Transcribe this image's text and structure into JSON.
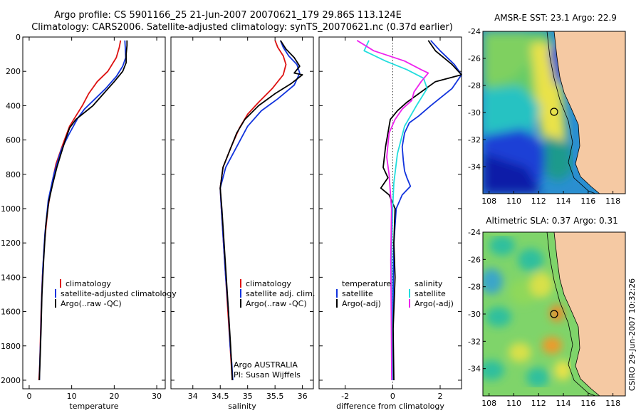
{
  "header": {
    "title_line1": "Argo profile: CS 5901166_25 21-Jun-2007 20070621_179 29.86S 113.124E",
    "title_line2": "Climatology: CARS2006. Satellite-adjusted climatology: synTS_20070621.nc (0.37d earlier)"
  },
  "colors": {
    "climatology": "#dd1111",
    "satellite": "#1133dd",
    "argo": "#000000",
    "sal_satellite": "#22dddd",
    "sal_argo": "#ee22ee",
    "land": "#f5c9a3"
  },
  "side_stamp": "CSIRO 29-Jun-2007 10:32:26",
  "chart_data": [
    {
      "type": "line",
      "xlabel": "temperature",
      "ylabel": "",
      "xlim": [
        -1.5,
        32
      ],
      "ylim": [
        2050,
        0
      ],
      "xticks": [
        0,
        10,
        20,
        30
      ],
      "yticks": [
        0,
        200,
        400,
        600,
        800,
        1000,
        1200,
        1400,
        1600,
        1800,
        2000
      ],
      "legend": [
        "climatology",
        "satellite-adjusted climatology",
        "Argo(..raw -QC)"
      ],
      "series": [
        {
          "name": "climatology",
          "color": "#dd1111",
          "x": [
            21.5,
            21.2,
            20.5,
            18.5,
            16.0,
            14.0,
            12.5,
            11.0,
            9.5,
            8.0,
            6.3,
            5.3,
            4.4,
            3.6,
            3.1,
            2.8,
            2.6,
            2.5,
            2.3
          ],
          "y": [
            20,
            60,
            120,
            200,
            260,
            330,
            400,
            460,
            520,
            620,
            740,
            860,
            1000,
            1200,
            1400,
            1600,
            1800,
            1900,
            2000
          ]
        },
        {
          "name": "satellite-adjusted climatology",
          "color": "#1133dd",
          "x": [
            22.5,
            22.6,
            22.7,
            22.0,
            20.5,
            18.0,
            15.5,
            13.0,
            11.5,
            9.5,
            7.5,
            5.8,
            4.5,
            3.7,
            3.2,
            2.9,
            2.7,
            2.5,
            2.4
          ],
          "y": [
            20,
            60,
            120,
            170,
            230,
            300,
            360,
            420,
            470,
            560,
            660,
            800,
            950,
            1150,
            1350,
            1550,
            1750,
            1900,
            2000
          ]
        },
        {
          "name": "Argo(..raw -QC)",
          "color": "#000000",
          "x": [
            23.0,
            23.0,
            22.8,
            22.8,
            22.0,
            20.0,
            17.5,
            15.0,
            13.0,
            11.0,
            9.5,
            8.5,
            7.5,
            6.5,
            5.5,
            4.6,
            3.9,
            3.4,
            3.0,
            2.8,
            2.6,
            2.4
          ],
          "y": [
            20,
            50,
            100,
            150,
            200,
            260,
            330,
            400,
            440,
            480,
            530,
            600,
            680,
            760,
            860,
            960,
            1100,
            1300,
            1500,
            1700,
            1850,
            2000
          ]
        }
      ]
    },
    {
      "type": "line",
      "xlabel": "salinity",
      "ylabel": "",
      "xlim": [
        33.6,
        36.2
      ],
      "ylim": [
        2050,
        0
      ],
      "xticks": [
        34,
        34.5,
        35,
        35.5,
        36
      ],
      "yticks": [
        0,
        200,
        400,
        600,
        800,
        1000,
        1200,
        1400,
        1600,
        1800,
        2000
      ],
      "legend": [
        "climatology",
        "satellite adj. clim.",
        "Argo(..raw -QC)"
      ],
      "annotation": [
        "Argo AUSTRALIA",
        "PI: Susan Wijffels"
      ],
      "series": [
        {
          "name": "climatology",
          "color": "#dd1111",
          "x": [
            35.5,
            35.55,
            35.65,
            35.7,
            35.65,
            35.45,
            35.2,
            35.0,
            34.85,
            34.7,
            34.55,
            34.5,
            34.52,
            34.56,
            34.6,
            34.64,
            34.68,
            34.7,
            34.72
          ],
          "y": [
            20,
            60,
            110,
            160,
            220,
            300,
            380,
            450,
            530,
            640,
            760,
            880,
            1000,
            1200,
            1400,
            1600,
            1800,
            1900,
            2000
          ]
        },
        {
          "name": "satellite adj. clim.",
          "color": "#1133dd",
          "x": [
            35.6,
            35.65,
            35.75,
            35.9,
            35.95,
            35.85,
            35.55,
            35.25,
            35.0,
            34.8,
            34.6,
            34.5,
            34.52,
            34.56,
            34.6,
            34.65,
            34.68,
            34.71,
            34.73
          ],
          "y": [
            20,
            60,
            110,
            160,
            210,
            280,
            360,
            430,
            520,
            640,
            760,
            880,
            1000,
            1200,
            1400,
            1600,
            1800,
            1900,
            2000
          ]
        },
        {
          "name": "Argo(..raw -QC)",
          "color": "#000000",
          "x": [
            35.6,
            35.7,
            35.85,
            35.95,
            35.85,
            36.0,
            35.8,
            35.5,
            35.2,
            34.95,
            34.8,
            34.7,
            34.55,
            34.5,
            34.53,
            34.57,
            34.61,
            34.65,
            34.69,
            34.72
          ],
          "y": [
            20,
            70,
            120,
            170,
            210,
            220,
            270,
            330,
            400,
            480,
            560,
            640,
            760,
            880,
            1000,
            1200,
            1400,
            1600,
            1800,
            2000
          ]
        }
      ]
    },
    {
      "type": "line",
      "xlabel": "difference from climatology",
      "ylabel": "",
      "xlim": [
        -3.1,
        2.9
      ],
      "ylim": [
        2050,
        0
      ],
      "xticks": [
        -2,
        0,
        2
      ],
      "yticks": [
        0,
        200,
        400,
        600,
        800,
        1000,
        1200,
        1400,
        1600,
        1800,
        2000
      ],
      "legend_groups": [
        {
          "heading": "temperature",
          "items": [
            "satellite",
            "Argo(-adj)"
          ]
        },
        {
          "heading": "salinity",
          "items": [
            "satellite",
            "Argo(-adj)"
          ]
        }
      ],
      "series": [
        {
          "name": "temperature satellite",
          "color": "#1133dd",
          "x": [
            1.6,
            2.0,
            2.6,
            2.9,
            2.5,
            1.6,
            1.1,
            0.7,
            0.5,
            0.4,
            0.45,
            0.5,
            0.6,
            0.75,
            0.4,
            0.15,
            0.05,
            0.02,
            0.01,
            0.0
          ],
          "y": [
            20,
            80,
            160,
            220,
            300,
            400,
            460,
            500,
            560,
            640,
            720,
            780,
            820,
            870,
            920,
            1000,
            1200,
            1500,
            1800,
            2000
          ]
        },
        {
          "name": "temperature Argo(-adj)",
          "color": "#000000",
          "x": [
            1.5,
            1.8,
            2.5,
            2.9,
            1.8,
            1.2,
            0.6,
            0.2,
            -0.1,
            -0.2,
            -0.3,
            -0.4,
            -0.2,
            -0.5,
            -0.15,
            0.1,
            0.05,
            0.1,
            0.02,
            0.05
          ],
          "y": [
            20,
            80,
            160,
            220,
            260,
            320,
            380,
            430,
            480,
            560,
            640,
            760,
            820,
            880,
            920,
            1000,
            1200,
            1400,
            1700,
            2000
          ]
        },
        {
          "name": "salinity satellite",
          "color": "#22dddd",
          "x": [
            -1.0,
            -1.2,
            -0.3,
            0.6,
            1.3,
            1.45,
            1.0,
            0.5,
            0.2,
            0.05,
            0.0,
            -0.03,
            -0.04,
            -0.03,
            -0.02
          ],
          "y": [
            20,
            80,
            140,
            190,
            240,
            300,
            400,
            520,
            680,
            850,
            1000,
            1200,
            1500,
            1800,
            2000
          ]
        },
        {
          "name": "salinity Argo(-adj)",
          "color": "#ee22ee",
          "x": [
            -1.5,
            -0.8,
            0.5,
            1.2,
            1.5,
            1.2,
            0.9,
            0.8,
            0.4,
            0.1,
            -0.15,
            -0.25,
            -0.15,
            -0.1,
            -0.05,
            -0.08,
            -0.06,
            -0.04
          ],
          "y": [
            20,
            80,
            140,
            190,
            210,
            260,
            320,
            370,
            420,
            480,
            560,
            700,
            800,
            900,
            1000,
            1300,
            1600,
            2000
          ]
        }
      ]
    },
    {
      "type": "heatmap",
      "title": "AMSR-E SST: 23.1 Argo: 22.9",
      "xlim": [
        107.5,
        119
      ],
      "ylim": [
        -36,
        -24
      ],
      "xticks": [
        108,
        110,
        112,
        114,
        116,
        118
      ],
      "yticks": [
        -24,
        -26,
        -28,
        -30,
        -32,
        -34
      ],
      "marker": {
        "lon": 113.124,
        "lat": -29.86
      }
    },
    {
      "type": "heatmap",
      "title": "Altimetric SLA: 0.37 Argo: 0.31",
      "xlim": [
        107.5,
        119
      ],
      "ylim": [
        -36,
        -24
      ],
      "xticks": [
        108,
        110,
        112,
        114,
        116,
        118
      ],
      "yticks": [
        -24,
        -26,
        -28,
        -30,
        -32,
        -34
      ],
      "marker": {
        "lon": 113.124,
        "lat": -29.86
      }
    }
  ]
}
